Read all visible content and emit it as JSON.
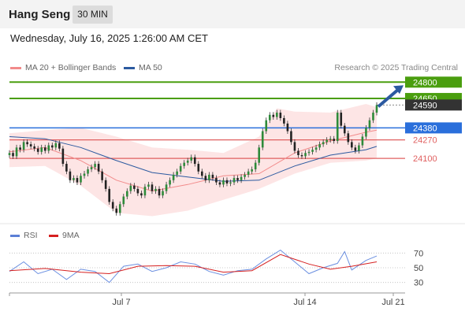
{
  "header": {
    "title": "Hang Seng",
    "timeframe": "30 MIN"
  },
  "date_line": "Wednesday, July 16, 2025 1:26:00 AM CET",
  "legend": {
    "items": [
      {
        "label": "MA 20 + Bollinger Bands",
        "color": "#f28b8b"
      },
      {
        "label": "MA 50",
        "color": "#2c5aa0"
      }
    ]
  },
  "credit": "Research © 2025 Trading Central",
  "rsi_legend": {
    "items": [
      {
        "label": "RSI",
        "color": "#5b7fd6"
      },
      {
        "label": "9MA",
        "color": "#d62020"
      }
    ]
  },
  "chart_data": [
    {
      "type": "candlestick",
      "title": "Hang Seng",
      "timeframe": "30 MIN",
      "x_labels": [
        "Jul 7",
        "Jul 14",
        "Jul 21"
      ],
      "ylim": [
        23530,
        24860
      ],
      "levels": [
        {
          "label": "24800",
          "value": 24800,
          "kind": "resistance",
          "color": "#4a9e0f"
        },
        {
          "label": "24650",
          "value": 24650,
          "kind": "resistance",
          "color": "#4a9e0f"
        },
        {
          "label": "24590",
          "value": 24590,
          "kind": "last_price",
          "color": "#333333"
        },
        {
          "label": "24380",
          "value": 24380,
          "kind": "pivot",
          "color": "#2a6fdb"
        },
        {
          "label": "24270",
          "value": 24270,
          "kind": "support",
          "color": "#e06060"
        },
        {
          "label": "24100",
          "value": 24100,
          "kind": "support",
          "color": "#e06060"
        }
      ],
      "series": [
        {
          "name": "Price",
          "closes": [
            24150,
            24120,
            24200,
            24180,
            24250,
            24230,
            24210,
            24190,
            24160,
            24200,
            24170,
            24220,
            24200,
            24240,
            24190,
            24050,
            23980,
            23900,
            23920,
            23880,
            23940,
            23960,
            24000,
            24020,
            24050,
            23980,
            23900,
            23820,
            23700,
            23640,
            23600,
            23680,
            23750,
            23800,
            23850,
            23820,
            23780,
            23760,
            23840,
            23860,
            23800,
            23820,
            23760,
            23800,
            23860,
            23900,
            23950,
            23980,
            24030,
            24060,
            24080,
            24110,
            24050,
            23980,
            23940,
            23900,
            23950,
            23920,
            23880,
            23860,
            23900,
            23870,
            23880,
            23920,
            23900,
            23930,
            23950,
            23980,
            24000,
            24060,
            24200,
            24350,
            24450,
            24500,
            24480,
            24520,
            24470,
            24420,
            24350,
            24250,
            24170,
            24130,
            24120,
            24150,
            24160,
            24180,
            24200,
            24230,
            24250,
            24270,
            24280,
            24260,
            24520,
            24400,
            24330,
            24250,
            24200,
            24170,
            24220,
            24300,
            24380,
            24450,
            24520,
            24590
          ]
        },
        {
          "name": "MA 20",
          "values": [
            [
              0,
              24160
            ],
            [
              10,
              24200
            ],
            [
              20,
              24080
            ],
            [
              30,
              23900
            ],
            [
              40,
              23800
            ],
            [
              50,
              23860
            ],
            [
              60,
              23940
            ],
            [
              70,
              23960
            ],
            [
              80,
              24150
            ],
            [
              90,
              24260
            ],
            [
              100,
              24340
            ],
            [
              103,
              24360
            ]
          ]
        },
        {
          "name": "MA 50",
          "values": [
            [
              0,
              24300
            ],
            [
              10,
              24280
            ],
            [
              20,
              24200
            ],
            [
              30,
              24080
            ],
            [
              40,
              23970
            ],
            [
              50,
              23930
            ],
            [
              60,
              23890
            ],
            [
              70,
              23900
            ],
            [
              80,
              24030
            ],
            [
              90,
              24130
            ],
            [
              100,
              24180
            ],
            [
              103,
              24210
            ]
          ]
        }
      ],
      "bollinger": {
        "upper": [
          [
            0,
            24330
          ],
          [
            10,
            24360
          ],
          [
            20,
            24380
          ],
          [
            30,
            24300
          ],
          [
            40,
            24200
          ],
          [
            50,
            24180
          ],
          [
            60,
            24150
          ],
          [
            70,
            24300
          ],
          [
            75,
            24560
          ],
          [
            80,
            24530
          ],
          [
            90,
            24520
          ],
          [
            100,
            24600
          ],
          [
            103,
            24570
          ]
        ],
        "lower": [
          [
            0,
            24020
          ],
          [
            10,
            24030
          ],
          [
            20,
            23850
          ],
          [
            30,
            23600
          ],
          [
            40,
            23570
          ],
          [
            50,
            23620
          ],
          [
            60,
            23720
          ],
          [
            70,
            23820
          ],
          [
            80,
            23960
          ],
          [
            90,
            24060
          ],
          [
            100,
            24080
          ],
          [
            103,
            24100
          ]
        ]
      }
    },
    {
      "type": "line",
      "title": "RSI",
      "yticks": [
        30,
        50,
        70
      ],
      "ylim": [
        20,
        80
      ],
      "series": [
        {
          "name": "RSI",
          "values": [
            [
              0,
              45
            ],
            [
              4,
              58
            ],
            [
              8,
              42
            ],
            [
              12,
              48
            ],
            [
              16,
              34
            ],
            [
              20,
              48
            ],
            [
              24,
              45
            ],
            [
              28,
              30
            ],
            [
              32,
              52
            ],
            [
              36,
              55
            ],
            [
              40,
              45
            ],
            [
              44,
              50
            ],
            [
              48,
              58
            ],
            [
              52,
              55
            ],
            [
              56,
              45
            ],
            [
              60,
              40
            ],
            [
              64,
              46
            ],
            [
              68,
              48
            ],
            [
              72,
              62
            ],
            [
              76,
              74
            ],
            [
              80,
              58
            ],
            [
              84,
              42
            ],
            [
              88,
              50
            ],
            [
              92,
              56
            ],
            [
              94,
              72
            ],
            [
              96,
              47
            ],
            [
              100,
              60
            ],
            [
              103,
              66
            ]
          ]
        },
        {
          "name": "9MA",
          "values": [
            [
              0,
              46
            ],
            [
              10,
              49
            ],
            [
              20,
              44
            ],
            [
              28,
              42
            ],
            [
              36,
              52
            ],
            [
              44,
              53
            ],
            [
              52,
              52
            ],
            [
              60,
              44
            ],
            [
              68,
              46
            ],
            [
              76,
              68
            ],
            [
              84,
              55
            ],
            [
              90,
              48
            ],
            [
              96,
              52
            ],
            [
              103,
              58
            ]
          ]
        }
      ]
    }
  ]
}
